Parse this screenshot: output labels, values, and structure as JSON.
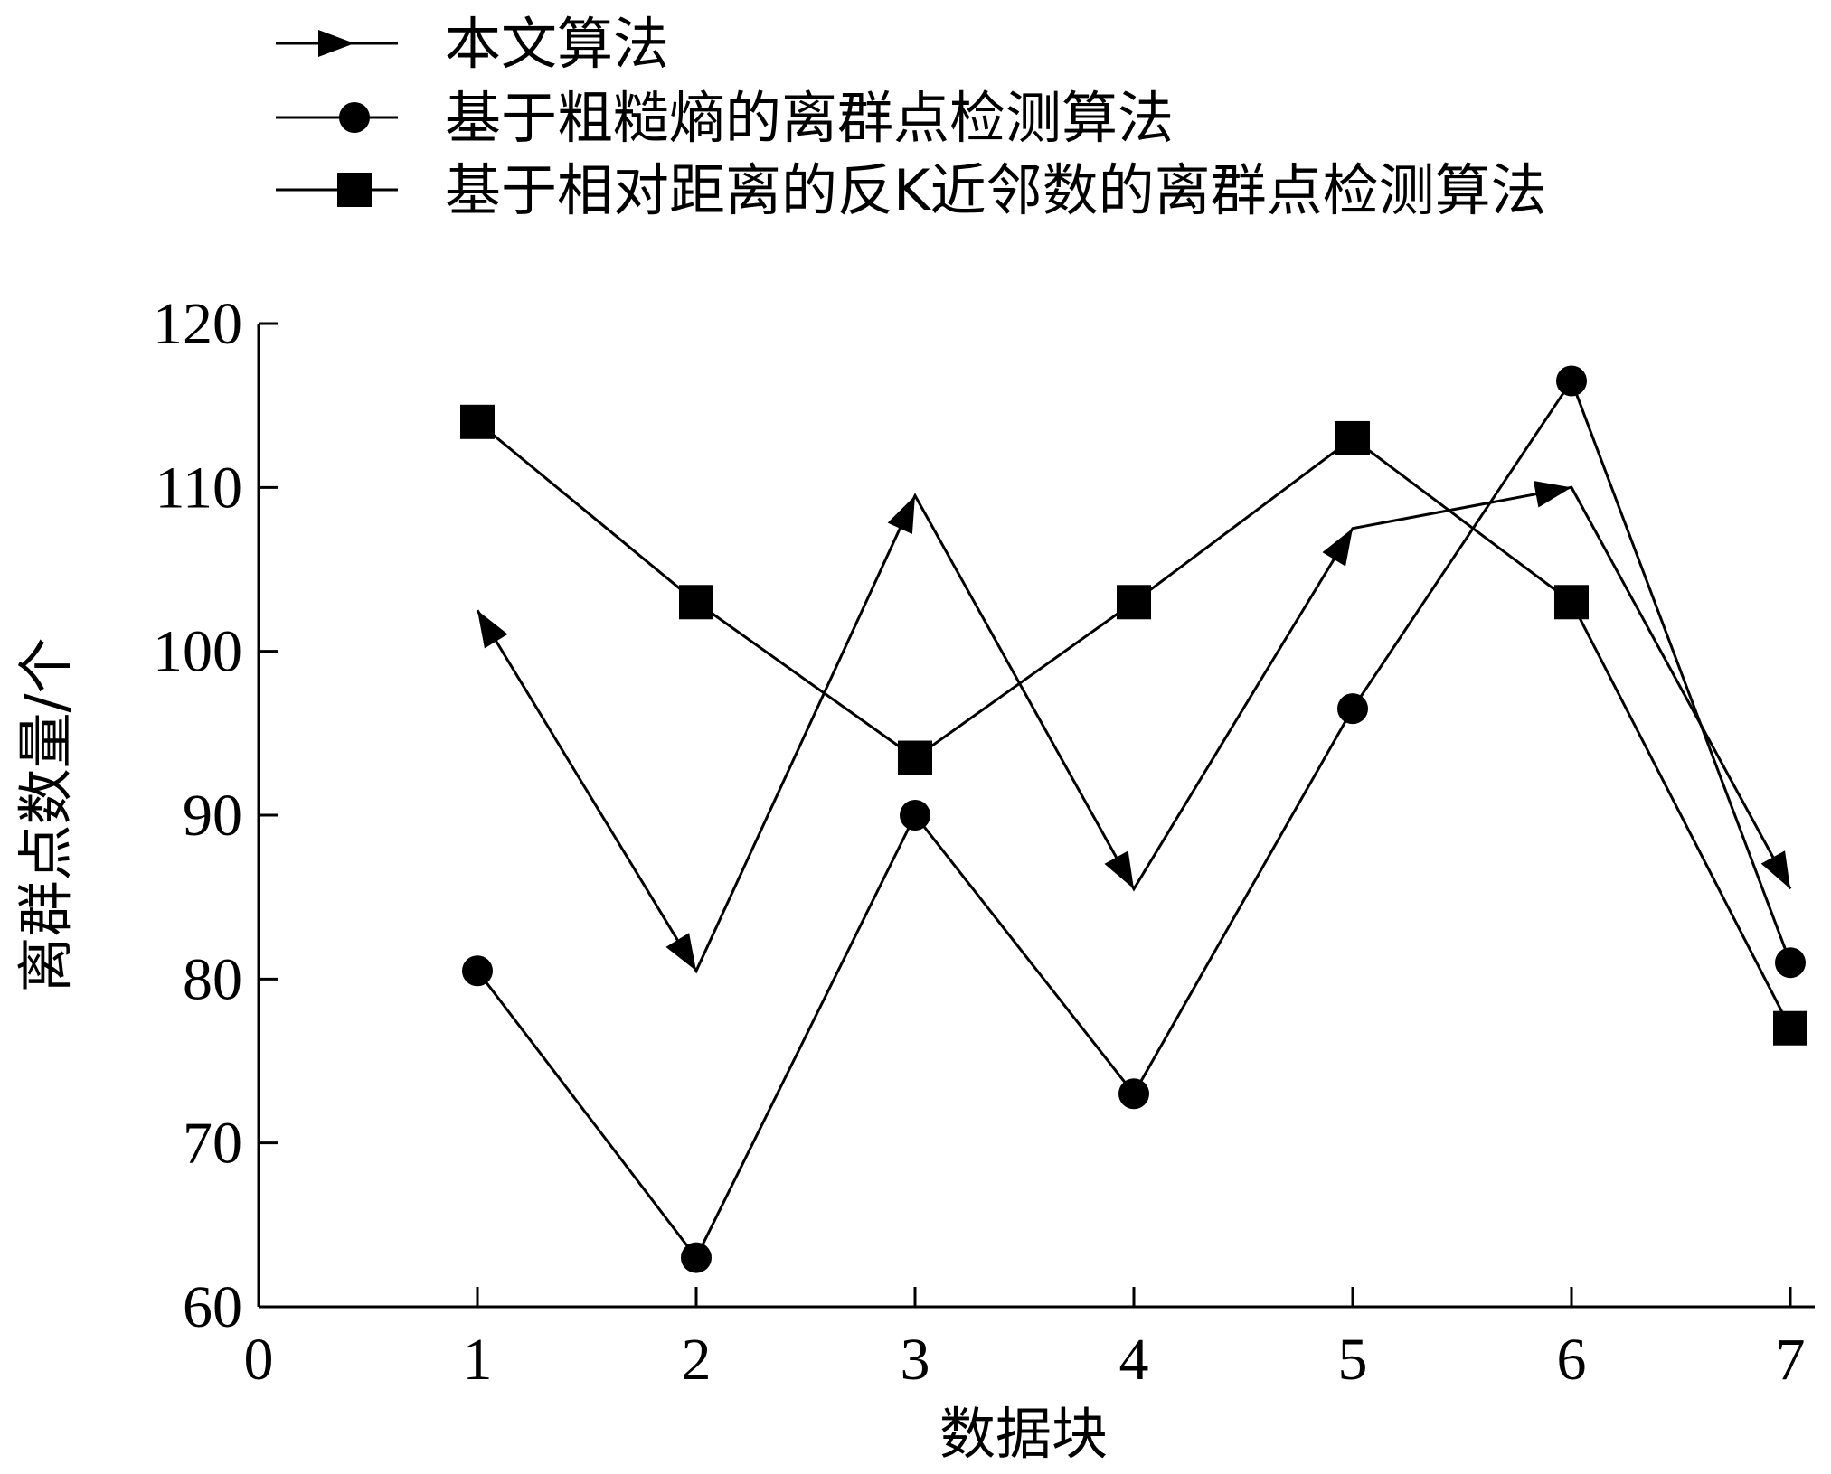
{
  "chart_data": {
    "type": "line",
    "xlabel": "数据块",
    "ylabel": "离群点数量/个",
    "xlim": [
      0,
      7
    ],
    "ylim": [
      60,
      120
    ],
    "xticks": [
      "0",
      "1",
      "2",
      "3",
      "4",
      "5",
      "6",
      "7"
    ],
    "yticks": [
      "60",
      "70",
      "80",
      "90",
      "100",
      "110",
      "120"
    ],
    "grid": false,
    "legend_position": "top",
    "series": [
      {
        "name": "本文算法",
        "marker": "triangle",
        "x": [
          1,
          2,
          3,
          4,
          5,
          6,
          7
        ],
        "values": [
          102.5,
          80.5,
          109.5,
          85.5,
          107.5,
          110,
          85.5
        ]
      },
      {
        "name": "基于粗糙熵的离群点检测算法",
        "marker": "circle",
        "x": [
          1,
          2,
          3,
          4,
          5,
          6,
          7
        ],
        "values": [
          80.5,
          63,
          90,
          73,
          96.5,
          116.5,
          81
        ]
      },
      {
        "name": "基于相对距离的反K近邻数的离群点检测算法",
        "marker": "square",
        "x": [
          1,
          2,
          3,
          4,
          5,
          6,
          7
        ],
        "values": [
          114,
          103,
          93.5,
          103,
          113,
          103,
          77
        ]
      }
    ]
  }
}
